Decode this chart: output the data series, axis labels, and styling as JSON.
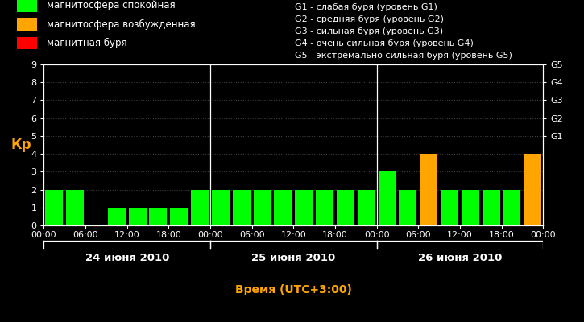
{
  "bg_color": "#000000",
  "bar_values": [
    2,
    2,
    0,
    1,
    1,
    1,
    1,
    2,
    2,
    2,
    2,
    2,
    2,
    2,
    2,
    2,
    3,
    2,
    4,
    2,
    2,
    2,
    2,
    4
  ],
  "bar_colors": [
    "#00ff00",
    "#00ff00",
    "#00ff00",
    "#00ff00",
    "#00ff00",
    "#00ff00",
    "#00ff00",
    "#00ff00",
    "#00ff00",
    "#00ff00",
    "#00ff00",
    "#00ff00",
    "#00ff00",
    "#00ff00",
    "#00ff00",
    "#00ff00",
    "#00ff00",
    "#00ff00",
    "#ffa500",
    "#00ff00",
    "#00ff00",
    "#00ff00",
    "#00ff00",
    "#ffa500"
  ],
  "ylim": [
    0,
    9
  ],
  "yticks": [
    0,
    1,
    2,
    3,
    4,
    5,
    6,
    7,
    8,
    9
  ],
  "ylabel": "Кр",
  "ylabel_color": "#ffa500",
  "xlabel": "Время (UTC+3:00)",
  "xlabel_color": "#ffa500",
  "grid_color": "#404040",
  "tick_color": "#ffffff",
  "spine_color": "#ffffff",
  "day_labels": [
    "24 июня 2010",
    "25 июня 2010",
    "26 июня 2010"
  ],
  "day_centers_bar": [
    3.5,
    11.5,
    19.5
  ],
  "day_dividers": [
    8,
    16
  ],
  "xtick_labels": [
    "00:00",
    "06:00",
    "12:00",
    "18:00",
    "00:00",
    "06:00",
    "12:00",
    "18:00",
    "00:00",
    "06:00",
    "12:00",
    "18:00",
    "00:00"
  ],
  "xtick_positions": [
    -0.5,
    1.5,
    3.5,
    5.5,
    7.5,
    9.5,
    11.5,
    13.5,
    15.5,
    17.5,
    19.5,
    21.5,
    23.5
  ],
  "right_axis_labels": [
    "G1",
    "G2",
    "G3",
    "G4",
    "G5"
  ],
  "right_axis_values": [
    5,
    6,
    7,
    8,
    9
  ],
  "legend_items": [
    {
      "label": "магнитосфера спокойная",
      "color": "#00ff00"
    },
    {
      "label": "магнитосфера возбужденная",
      "color": "#ffa500"
    },
    {
      "label": "магнитная буря",
      "color": "#ff0000"
    }
  ],
  "legend_text_color": "#ffffff",
  "right_legend_lines": [
    "G1 - слабая буря (уровень G1)",
    "G2 - средняя буря (уровень G2)",
    "G3 - сильная буря (уровень G3)",
    "G4 - очень сильная буря (уровень G4)",
    "G5 - экстремально сильная буря (уровень G5)"
  ],
  "right_legend_text_color": "#ffffff",
  "font_size": 8,
  "bar_width": 0.85
}
